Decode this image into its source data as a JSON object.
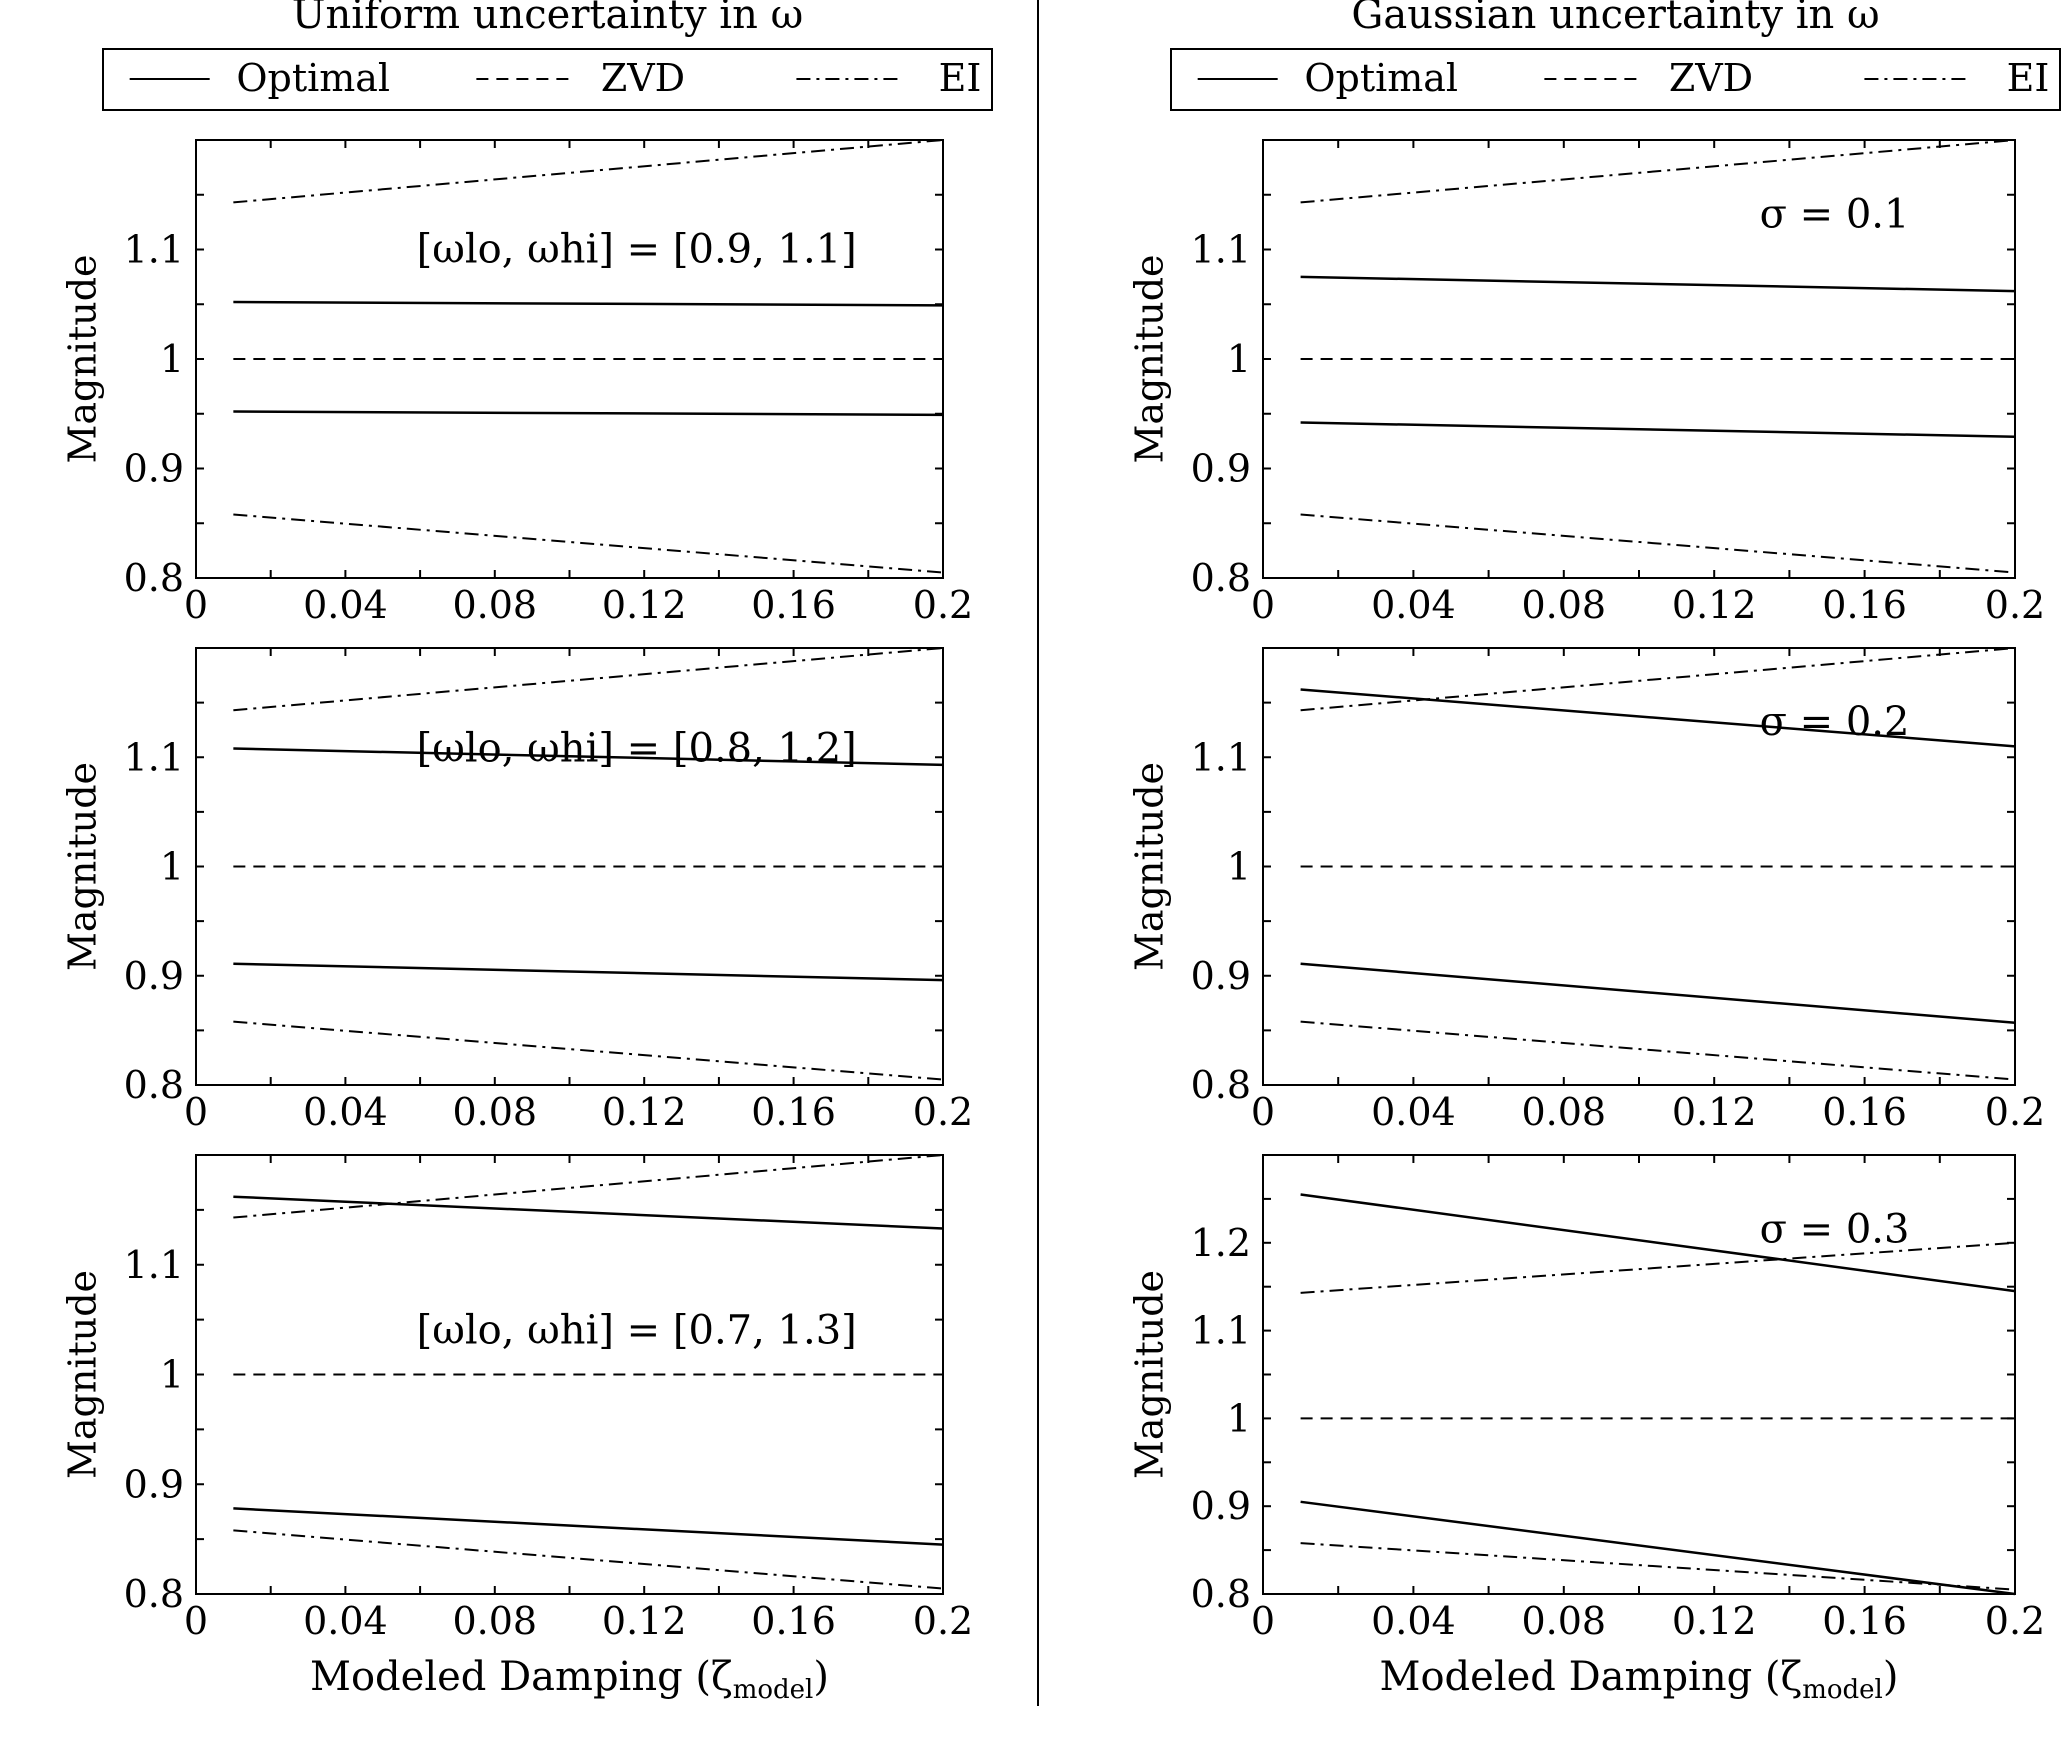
{
  "chart_data": {
    "type": "line",
    "columns": [
      {
        "title": "Uniform uncertainty in ω"
      },
      {
        "title": "Gaussian uncertainty in ω"
      }
    ],
    "legend": {
      "entries": [
        "Optimal",
        "ZVD",
        "EI"
      ],
      "placement": "top"
    },
    "xlabel": "Modeled Damping (ζ",
    "xlabel_sub": "model",
    "xlabel_close": ")",
    "ylabel": "Magnitude",
    "xlim": [
      0,
      0.2
    ],
    "xticks": [
      "0",
      "0.04",
      "0.08",
      "0.12",
      "0.16",
      "0.2"
    ],
    "x": [
      0.01,
      0.2
    ],
    "panels": [
      {
        "col": 0,
        "row": 0,
        "annotation": "[ωlo, ωhi] = [0.9, 1.1]",
        "ylim": [
          0.8,
          1.2
        ],
        "yticks": [
          "0.8",
          "0.9",
          "1",
          "1.1"
        ],
        "series": [
          {
            "name": "Optimal upper",
            "style": "solid",
            "values": [
              1.052,
              1.049
            ]
          },
          {
            "name": "Optimal lower",
            "style": "solid",
            "values": [
              0.952,
              0.949
            ]
          },
          {
            "name": "ZVD",
            "style": "dashed",
            "values": [
              1.0,
              1.0
            ]
          },
          {
            "name": "EI upper",
            "style": "dashdot",
            "values": [
              1.143,
              1.2
            ]
          },
          {
            "name": "EI lower",
            "style": "dashdot",
            "values": [
              0.858,
              0.805
            ]
          }
        ]
      },
      {
        "col": 0,
        "row": 1,
        "annotation": "[ωlo, ωhi] = [0.8, 1.2]",
        "ylim": [
          0.8,
          1.2
        ],
        "yticks": [
          "0.8",
          "0.9",
          "1",
          "1.1"
        ],
        "series": [
          {
            "name": "Optimal upper",
            "style": "solid",
            "values": [
              1.108,
              1.093
            ]
          },
          {
            "name": "Optimal lower",
            "style": "solid",
            "values": [
              0.911,
              0.896
            ]
          },
          {
            "name": "ZVD",
            "style": "dashed",
            "values": [
              1.0,
              1.0
            ]
          },
          {
            "name": "EI upper",
            "style": "dashdot",
            "values": [
              1.143,
              1.2
            ]
          },
          {
            "name": "EI lower",
            "style": "dashdot",
            "values": [
              0.858,
              0.805
            ]
          }
        ]
      },
      {
        "col": 0,
        "row": 2,
        "annotation": "[ωlo, ωhi] = [0.7, 1.3]",
        "ylim": [
          0.8,
          1.2
        ],
        "yticks": [
          "0.8",
          "0.9",
          "1",
          "1.1"
        ],
        "series": [
          {
            "name": "Optimal upper",
            "style": "solid",
            "values": [
              1.162,
              1.133
            ]
          },
          {
            "name": "Optimal lower",
            "style": "solid",
            "values": [
              0.878,
              0.845
            ]
          },
          {
            "name": "ZVD",
            "style": "dashed",
            "values": [
              1.0,
              1.0
            ]
          },
          {
            "name": "EI upper",
            "style": "dashdot",
            "values": [
              1.143,
              1.2
            ]
          },
          {
            "name": "EI lower",
            "style": "dashdot",
            "values": [
              0.858,
              0.805
            ]
          }
        ]
      },
      {
        "col": 1,
        "row": 0,
        "annotation": "σ = 0.1",
        "ylim": [
          0.8,
          1.2
        ],
        "yticks": [
          "0.8",
          "0.9",
          "1",
          "1.1"
        ],
        "series": [
          {
            "name": "Optimal upper",
            "style": "solid",
            "values": [
              1.075,
              1.062
            ]
          },
          {
            "name": "Optimal lower",
            "style": "solid",
            "values": [
              0.942,
              0.929
            ]
          },
          {
            "name": "ZVD",
            "style": "dashed",
            "values": [
              1.0,
              1.0
            ]
          },
          {
            "name": "EI upper",
            "style": "dashdot",
            "values": [
              1.143,
              1.2
            ]
          },
          {
            "name": "EI lower",
            "style": "dashdot",
            "values": [
              0.858,
              0.805
            ]
          }
        ]
      },
      {
        "col": 1,
        "row": 1,
        "annotation": "σ = 0.2",
        "ylim": [
          0.8,
          1.2
        ],
        "yticks": [
          "0.8",
          "0.9",
          "1",
          "1.1"
        ],
        "series": [
          {
            "name": "Optimal upper",
            "style": "solid",
            "values": [
              1.162,
              1.11
            ]
          },
          {
            "name": "Optimal lower",
            "style": "solid",
            "values": [
              0.911,
              0.857
            ]
          },
          {
            "name": "ZVD",
            "style": "dashed",
            "values": [
              1.0,
              1.0
            ]
          },
          {
            "name": "EI upper",
            "style": "dashdot",
            "values": [
              1.143,
              1.2
            ]
          },
          {
            "name": "EI lower",
            "style": "dashdot",
            "values": [
              0.858,
              0.805
            ]
          }
        ]
      },
      {
        "col": 1,
        "row": 2,
        "annotation": "σ = 0.3",
        "ylim": [
          0.8,
          1.3
        ],
        "yticks": [
          "0.8",
          "0.9",
          "1",
          "1.1",
          "1.2"
        ],
        "series": [
          {
            "name": "Optimal upper",
            "style": "solid",
            "values": [
              1.255,
              1.145
            ]
          },
          {
            "name": "Optimal lower",
            "style": "solid",
            "values": [
              0.905,
              0.8
            ]
          },
          {
            "name": "ZVD",
            "style": "dashed",
            "values": [
              1.0,
              1.0
            ]
          },
          {
            "name": "EI upper",
            "style": "dashdot",
            "values": [
              1.143,
              1.2
            ]
          },
          {
            "name": "EI lower",
            "style": "dashdot",
            "values": [
              0.858,
              0.805
            ]
          }
        ]
      }
    ]
  }
}
